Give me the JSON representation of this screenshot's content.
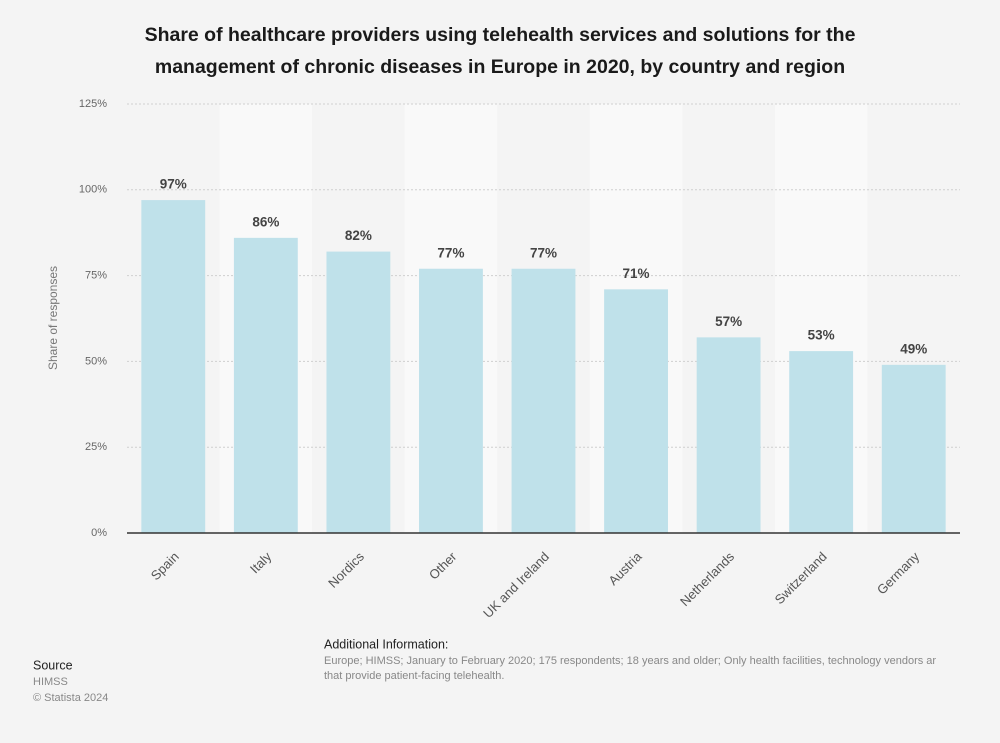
{
  "chart_data": {
    "type": "bar",
    "title": [
      "Share of healthcare providers using telehealth services and solutions for the",
      "management of chronic diseases in Europe in 2020, by country and region"
    ],
    "y_label": "Share of responses",
    "categories": [
      "Spain",
      "Italy",
      "Nordics",
      "Other",
      "UK and Ireland",
      "Austria",
      "Netherlands",
      "Switzerland",
      "Germany"
    ],
    "values": [
      97,
      86,
      82,
      77,
      77,
      71,
      57,
      53,
      49
    ],
    "value_labels": [
      "97%",
      "86%",
      "82%",
      "77%",
      "77%",
      "71%",
      "57%",
      "53%",
      "49%"
    ],
    "color": "#bfe1ea",
    "ylim": [
      0,
      125
    ],
    "yticks": [
      {
        "value": 0,
        "label": "0%"
      },
      {
        "value": 25,
        "label": "25%"
      },
      {
        "value": 50,
        "label": "50%"
      },
      {
        "value": 75,
        "label": "75%"
      },
      {
        "value": 100,
        "label": "100%"
      },
      {
        "value": 125,
        "label": "125%"
      }
    ],
    "grid": true
  },
  "footer": {
    "source_title": "Source",
    "source": "HIMSS",
    "copyright": "© Statista 2024",
    "info_title": "Additional Information:",
    "info": [
      "Europe; HIMSS; January to February 2020; 175 respondents; 18 years and older; Only health facilities, technology vendors ar",
      "that provide patient-facing telehealth."
    ]
  }
}
